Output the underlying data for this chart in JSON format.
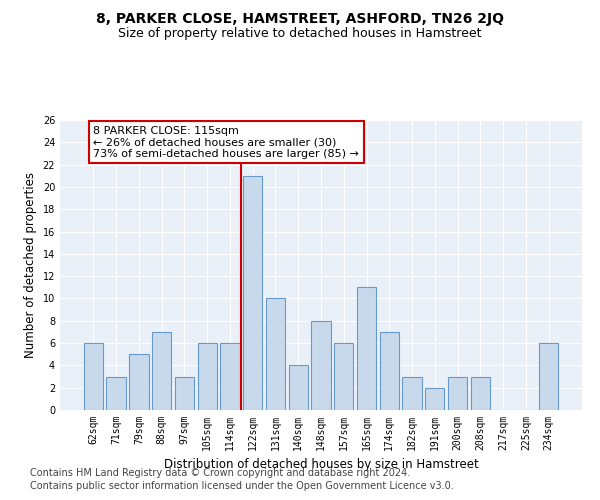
{
  "title": "8, PARKER CLOSE, HAMSTREET, ASHFORD, TN26 2JQ",
  "subtitle": "Size of property relative to detached houses in Hamstreet",
  "xlabel": "Distribution of detached houses by size in Hamstreet",
  "ylabel": "Number of detached properties",
  "categories": [
    "62sqm",
    "71sqm",
    "79sqm",
    "88sqm",
    "97sqm",
    "105sqm",
    "114sqm",
    "122sqm",
    "131sqm",
    "140sqm",
    "148sqm",
    "157sqm",
    "165sqm",
    "174sqm",
    "182sqm",
    "191sqm",
    "200sqm",
    "208sqm",
    "217sqm",
    "225sqm",
    "234sqm"
  ],
  "values": [
    6,
    3,
    5,
    7,
    3,
    6,
    6,
    21,
    10,
    4,
    8,
    6,
    11,
    7,
    3,
    2,
    3,
    3,
    0,
    0,
    6
  ],
  "bar_color": "#c9d9ec",
  "bar_edge_color": "#6699cc",
  "highlight_idx": 6,
  "highlight_label": "8 PARKER CLOSE: 115sqm",
  "annotation_line1": "← 26% of detached houses are smaller (30)",
  "annotation_line2": "73% of semi-detached houses are larger (85) →",
  "vline_color": "#cc0000",
  "annotation_box_color": "#ffffff",
  "annotation_box_edge": "#cc0000",
  "footer1": "Contains HM Land Registry data © Crown copyright and database right 2024.",
  "footer2": "Contains public sector information licensed under the Open Government Licence v3.0.",
  "ylim": [
    0,
    26
  ],
  "yticks": [
    0,
    2,
    4,
    6,
    8,
    10,
    12,
    14,
    16,
    18,
    20,
    22,
    24,
    26
  ],
  "bg_color": "#eaf0f8",
  "grid_color": "#ffffff",
  "title_fontsize": 10,
  "subtitle_fontsize": 9,
  "axis_label_fontsize": 8.5,
  "tick_fontsize": 7,
  "footer_fontsize": 7,
  "annot_fontsize": 8
}
